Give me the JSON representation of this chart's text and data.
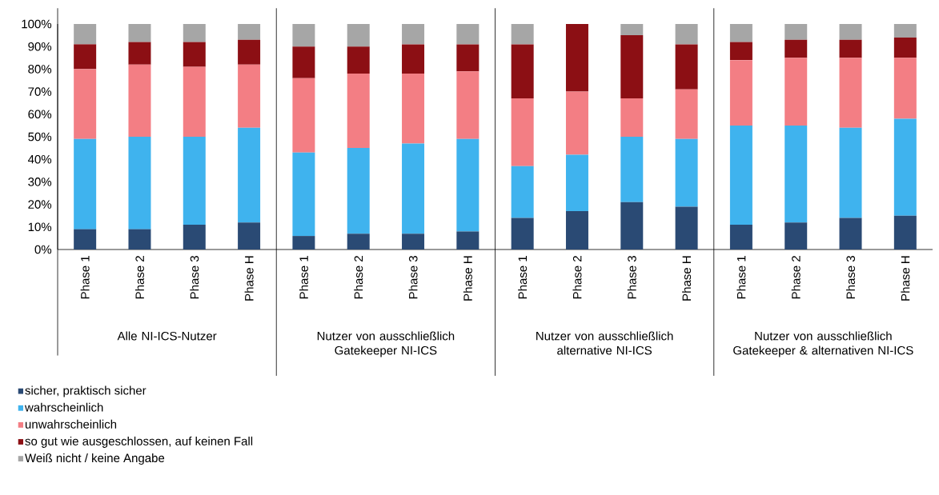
{
  "chart_data": {
    "type": "bar",
    "stacked": true,
    "legend": "bottom",
    "grid": false,
    "categories": [
      "Phase 1",
      "Phase 2",
      "Phase 3",
      "Phase H",
      "Phase 1",
      "Phase 2",
      "Phase 3",
      "Phase H",
      "Phase 1",
      "Phase 2",
      "Phase 3",
      "Phase H",
      "Phase 1",
      "Phase 2",
      "Phase 3",
      "Phase H"
    ],
    "annotations": [
      "Alle NI-ICS-Nutzer",
      "Nutzer von ausschließlich Gatekeeper NI-ICS",
      "Nutzer von ausschließlich alternative NI-ICS",
      "Nutzer von ausschließlich Gatekeeper & alternativen NI-ICS"
    ],
    "ylim": [
      0,
      100
    ],
    "yticks": [
      {
        "value": 0,
        "label": "0%"
      },
      {
        "value": 10,
        "label": "10%"
      },
      {
        "value": 20,
        "label": "20%"
      },
      {
        "value": 30,
        "label": "30%"
      },
      {
        "value": 40,
        "label": "40%"
      },
      {
        "value": 50,
        "label": "50%"
      },
      {
        "value": 60,
        "label": "60%"
      },
      {
        "value": 70,
        "label": "70%"
      },
      {
        "value": 80,
        "label": "80%"
      },
      {
        "value": 90,
        "label": "90%"
      },
      {
        "value": 100,
        "label": "100%"
      }
    ],
    "series": [
      {
        "name": "sicher, praktisch sicher",
        "color": "#2a4a74",
        "values": [
          9,
          9,
          11,
          12,
          6,
          7,
          7,
          8,
          14,
          17,
          21,
          19,
          11,
          12,
          14,
          15
        ]
      },
      {
        "name": "wahrscheinlich",
        "color": "#3fb3ee",
        "values": [
          40,
          41,
          39,
          42,
          37,
          38,
          40,
          41,
          23,
          25,
          29,
          30,
          44,
          43,
          40,
          43
        ]
      },
      {
        "name": "unwahrscheinlich",
        "color": "#f37e84",
        "values": [
          31,
          32,
          31,
          28,
          33,
          33,
          31,
          30,
          30,
          28,
          17,
          22,
          29,
          30,
          31,
          27
        ]
      },
      {
        "name": "so gut wie ausgeschlossen, auf keinen Fall",
        "color": "#8c0f14",
        "values": [
          11,
          10,
          11,
          11,
          14,
          12,
          13,
          12,
          24,
          30,
          28,
          20,
          8,
          8,
          8,
          9
        ]
      },
      {
        "name": "Weiß nicht / keine Angabe",
        "color": "#a6a6a6",
        "values": [
          9,
          8,
          8,
          7,
          10,
          10,
          9,
          9,
          9,
          0,
          5,
          9,
          8,
          7,
          7,
          6
        ]
      }
    ]
  }
}
